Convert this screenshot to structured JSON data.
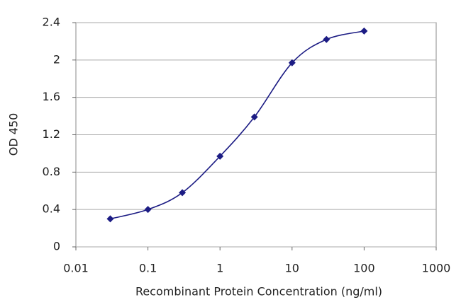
{
  "chart_data": {
    "type": "line",
    "x_label": "Recombinant Protein Concentration (ng/ml)",
    "y_label": "OD 450",
    "x": [
      0.03,
      0.1,
      0.3,
      1,
      3,
      10,
      30,
      100
    ],
    "series": [
      {
        "name": "OD 450",
        "color": "#1c1c84",
        "values": [
          0.3,
          0.4,
          0.58,
          0.97,
          1.39,
          1.97,
          2.22,
          2.31
        ]
      }
    ],
    "xscale": "log",
    "xlim": [
      0.01,
      1000
    ],
    "xticks": [
      0.01,
      0.1,
      1,
      10,
      100,
      1000
    ],
    "ylim": [
      0,
      2.4
    ],
    "yticks": [
      0,
      0.4,
      0.8,
      1.2,
      1.6,
      2,
      2.4
    ],
    "grid": true
  }
}
